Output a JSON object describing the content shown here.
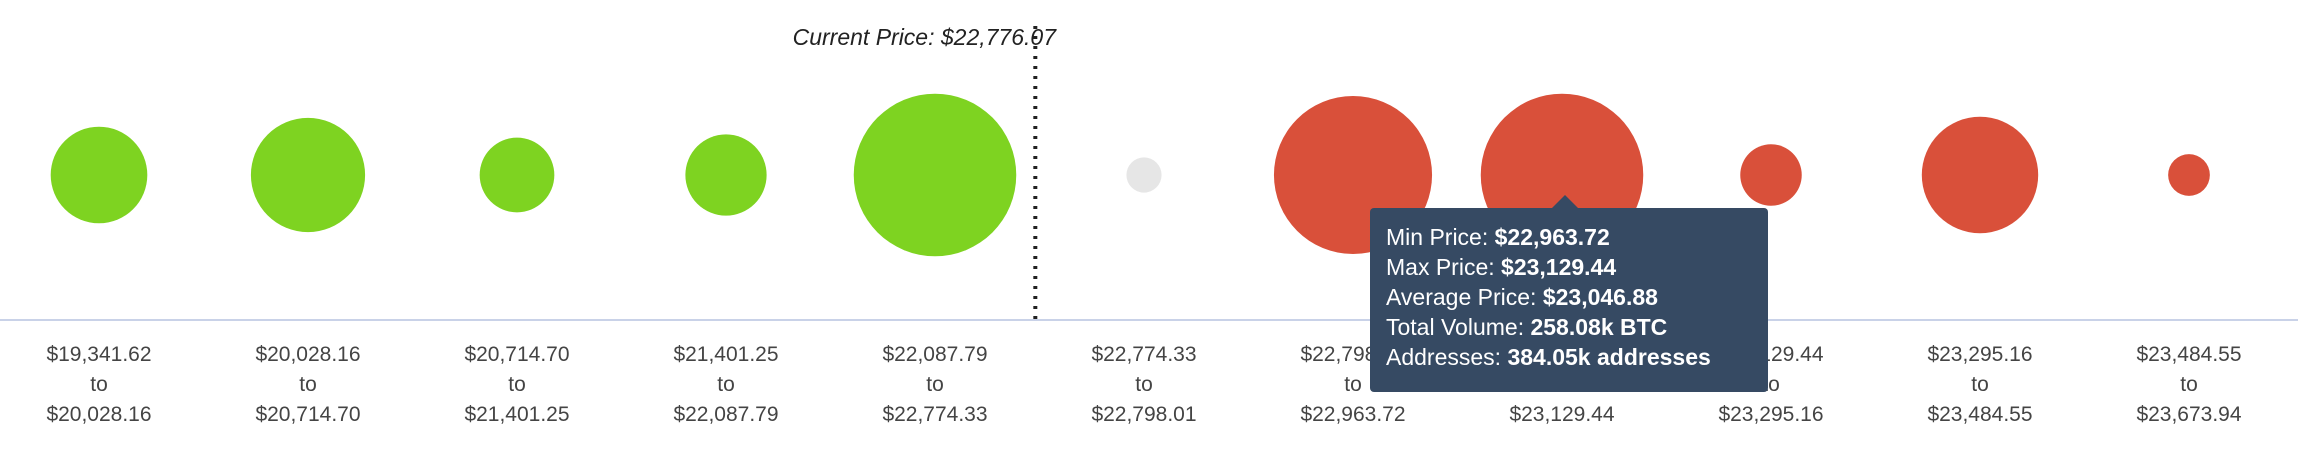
{
  "chart_data": {
    "type": "bubble",
    "current_price": {
      "label_prefix": "Current Price: ",
      "value": "$22,776.07",
      "position_after_bin_index": 4
    },
    "colors": {
      "below": "#7ed321",
      "above": "#d9503a",
      "neutral": "#e6e6e6",
      "axis": "#c9d2e8",
      "marker": "#222222"
    },
    "bins": [
      {
        "from": "$19,341.62",
        "to_word": "to",
        "to": "$20,028.16",
        "size": 0.44,
        "status": "below"
      },
      {
        "from": "$20,028.16",
        "to_word": "to",
        "to": "$20,714.70",
        "size": 0.52,
        "status": "below"
      },
      {
        "from": "$20,714.70",
        "to_word": "to",
        "to": "$21,401.25",
        "size": 0.34,
        "status": "below"
      },
      {
        "from": "$21,401.25",
        "to_word": "to",
        "to": "$22,087.79",
        "size": 0.37,
        "status": "below"
      },
      {
        "from": "$22,087.79",
        "to_word": "to",
        "to": "$22,774.33",
        "size": 0.74,
        "status": "below"
      },
      {
        "from": "$22,774.33",
        "to_word": "to",
        "to": "$22,798.01",
        "size": 0.16,
        "status": "neutral"
      },
      {
        "from": "$22,798.01",
        "to_word": "to",
        "to": "$22,963.72",
        "size": 0.72,
        "status": "above"
      },
      {
        "from": "$22,963.72",
        "to_word": "to",
        "to": "$23,129.44",
        "size": 0.74,
        "status": "above"
      },
      {
        "from": "$23,129.44",
        "to_word": "to",
        "to": "$23,295.16",
        "size": 0.28,
        "status": "above"
      },
      {
        "from": "$23,295.16",
        "to_word": "to",
        "to": "$23,484.55",
        "size": 0.53,
        "status": "above"
      },
      {
        "from": "$23,484.55",
        "to_word": "to",
        "to": "$23,673.94",
        "size": 0.19,
        "status": "above"
      }
    ]
  },
  "tooltip": {
    "bin_index": 7,
    "rows": [
      {
        "label": "Min Price: ",
        "value": "$22,963.72"
      },
      {
        "label": "Max Price: ",
        "value": "$23,129.44"
      },
      {
        "label": "Average Price: ",
        "value": "$23,046.88"
      },
      {
        "label": "Total Volume: ",
        "value": "258.08k BTC"
      },
      {
        "label": "Addresses: ",
        "value": "384.05k addresses"
      }
    ]
  }
}
